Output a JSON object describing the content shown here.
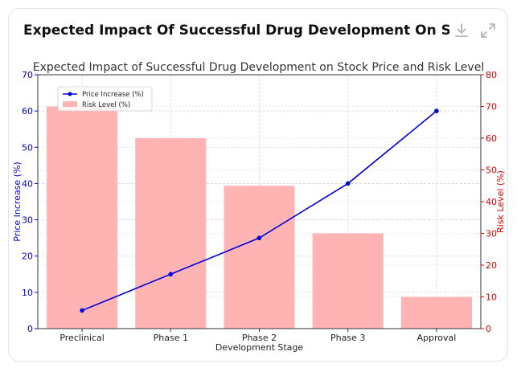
{
  "card": {
    "title": "Expected Impact Of Successful Drug Development On Stock ..."
  },
  "toolbar": {
    "download_icon": "download-icon",
    "expand_icon": "expand-icon"
  },
  "colors": {
    "line": "#0000dd",
    "bar": "#ffb3b3",
    "left_axis": "#0000cc",
    "right_axis": "#dd0000",
    "grid": "#d6d6d6",
    "title": "#333333"
  },
  "chart_data": {
    "type": "bar+line",
    "title": "Expected Impact of Successful Drug Development on Stock Price and Risk Level",
    "xlabel": "Development Stage",
    "ylabel_left": "Price Increase (%)",
    "ylabel_right": "Risk Level (%)",
    "categories": [
      "Preclinical",
      "Phase 1",
      "Phase 2",
      "Phase 3",
      "Approval"
    ],
    "ylim_left": [
      0,
      70
    ],
    "ylim_right": [
      0,
      80
    ],
    "yticks_left": [
      "0",
      "10",
      "20",
      "30",
      "40",
      "50",
      "60",
      "70"
    ],
    "yticks_right": [
      "0",
      "10",
      "20",
      "30",
      "40",
      "50",
      "60",
      "70",
      "80"
    ],
    "grid": true,
    "legend_position": "top-left",
    "series": [
      {
        "name": "Price Increase (%)",
        "type": "line",
        "axis": "left",
        "values": [
          5,
          15,
          25,
          40,
          60
        ]
      },
      {
        "name": "Risk Level (%)",
        "type": "bar",
        "axis": "right",
        "values": [
          70,
          60,
          45,
          30,
          10
        ]
      }
    ]
  }
}
